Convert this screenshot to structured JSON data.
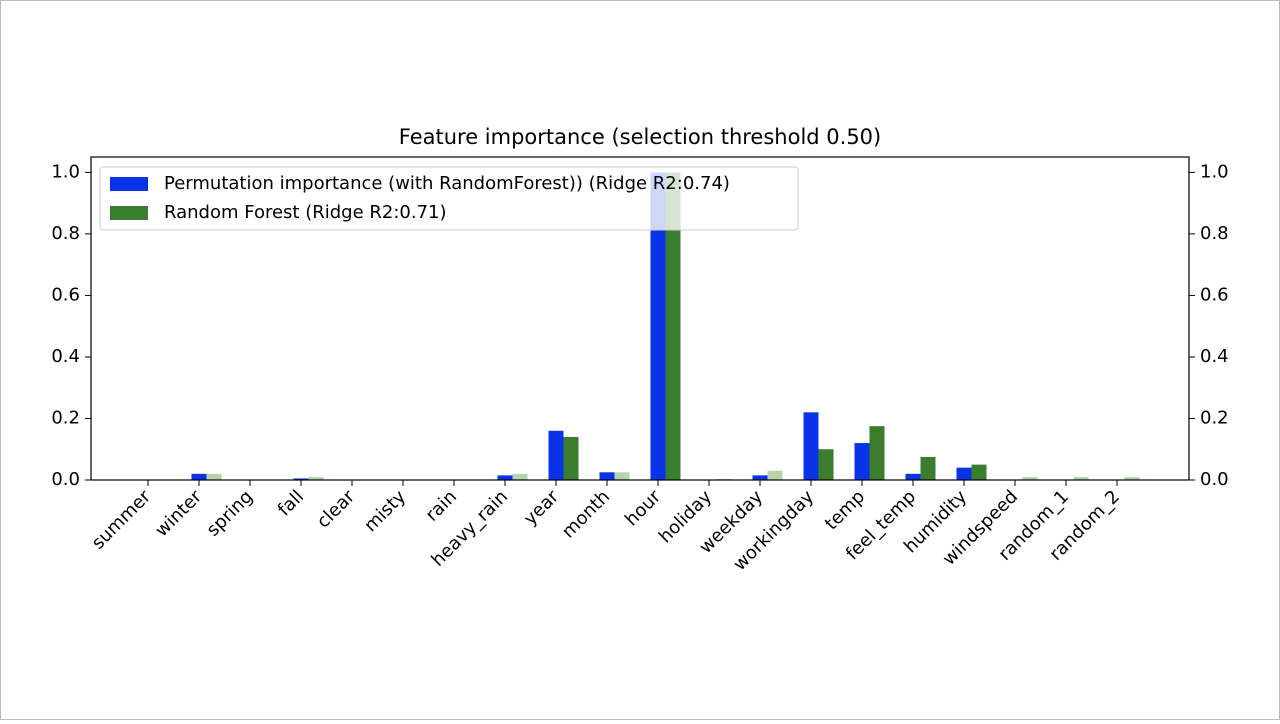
{
  "chart_data": {
    "type": "bar",
    "title": "Feature importance (selection threshold 0.50)",
    "categories": [
      "summer",
      "winter",
      "spring",
      "fall",
      "clear",
      "misty",
      "rain",
      "heavy_rain",
      "year",
      "month",
      "hour",
      "holiday",
      "weekday",
      "workingday",
      "temp",
      "feel_temp",
      "humidity",
      "windspeed",
      "random_1",
      "random_2"
    ],
    "series": [
      {
        "name": "Permutation importance (with RandomForest)) (Ridge R2:0.74)",
        "color": "#0a32e6",
        "values": [
          0,
          0.02,
          0,
          0.005,
          0,
          0,
          0,
          0.015,
          0.16,
          0.025,
          1.0,
          0,
          0.015,
          0.22,
          0.12,
          0.02,
          0.04,
          0,
          0,
          0
        ]
      },
      {
        "name": "Random Forest (Ridge R2:0.71)",
        "color": "#3a7d2c",
        "colors": [
          "#b5d3ae",
          "#b5d3ae",
          "#b5d3ae",
          "#b5d3ae",
          "#b5d3ae",
          "#b5d3ae",
          "#b5d3ae",
          "#b5d3ae",
          "#3a7d2c",
          "#b5d3ae",
          "#3a7d2c",
          "#b5d3ae",
          "#b5d3ae",
          "#3a7d2c",
          "#3a7d2c",
          "#3a7d2c",
          "#3a7d2c",
          "#b5d3ae",
          "#b5d3ae",
          "#b5d3ae"
        ],
        "values": [
          0,
          0.02,
          0,
          0.01,
          0,
          0,
          0,
          0.02,
          0.14,
          0.025,
          1.0,
          0.003,
          0.03,
          0.1,
          0.175,
          0.075,
          0.05,
          0.01,
          0.01,
          0.01
        ]
      }
    ],
    "ylim": [
      0,
      1.05
    ],
    "yticks": [
      {
        "value": 0,
        "label": "0.0"
      },
      0.2,
      0.4,
      0.6,
      0.8,
      {
        "value": 1,
        "label": "1.0"
      }
    ],
    "y2lim": [
      0,
      1.05
    ],
    "y2ticks": [
      {
        "value": 0,
        "label": "0.0"
      },
      0.2,
      0.4,
      0.6,
      0.8,
      {
        "value": 1,
        "label": "1.0"
      }
    ],
    "legend": "upper left"
  }
}
